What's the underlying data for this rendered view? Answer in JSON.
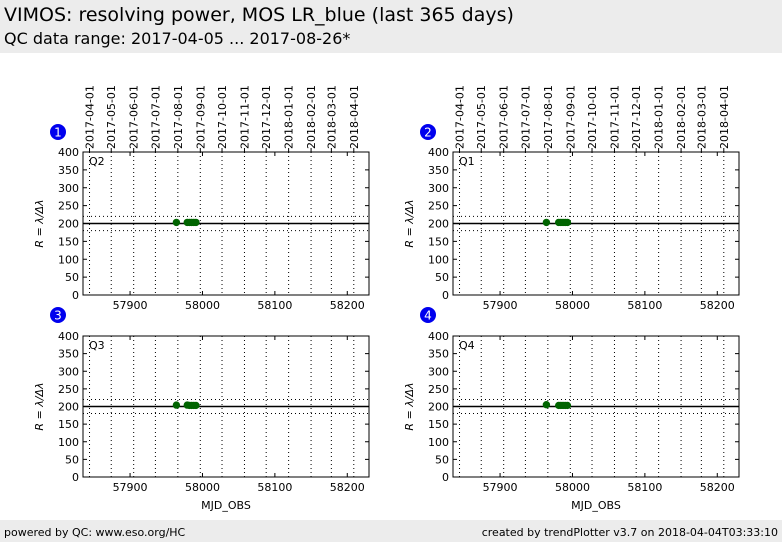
{
  "header": {
    "title": "VIMOS: resolving power, MOS LR_blue (last 365 days)",
    "subtitle": "QC data range: 2017-04-05 ... 2017-08-26*"
  },
  "footer": {
    "left": "powered by QC: www.eso.org/HC",
    "right": "created by trendPlotter v3.7 on 2018-04-04T03:33:10"
  },
  "colors": {
    "points": "#006400",
    "badge": "#0000ee",
    "badge_text": "#ffffff",
    "line": "#000000",
    "grid": "#000000"
  },
  "chart_data": [
    {
      "type": "scatter",
      "panel_number": "1",
      "label": "Q2",
      "xlabel": "",
      "ylabel": "R = λ/Δλ",
      "xlim": [
        57835,
        58230
      ],
      "ylim": [
        0,
        400
      ],
      "x_ticks": [
        57900,
        58000,
        58100,
        58200
      ],
      "y_ticks": [
        0,
        50,
        100,
        150,
        200,
        250,
        300,
        350,
        400
      ],
      "top_axis_dates": [
        "2017-04-01",
        "2017-05-01",
        "2017-06-01",
        "2017-07-01",
        "2017-08-01",
        "2017-09-01",
        "2017-10-01",
        "2017-11-01",
        "2017-12-01",
        "2018-01-01",
        "2018-02-01",
        "2018-03-01",
        "2018-04-01"
      ],
      "top_axis_mjd": [
        57844,
        57874,
        57905,
        57935,
        57966,
        57997,
        58027,
        58058,
        58088,
        58119,
        58150,
        58178,
        58209
      ],
      "reference_line": 200,
      "threshold_lines": [
        180,
        220
      ],
      "points": [
        [
          57964,
          203
        ],
        [
          57979,
          203
        ],
        [
          57982,
          203
        ],
        [
          57985,
          203
        ],
        [
          57988,
          203
        ],
        [
          57991,
          203
        ]
      ]
    },
    {
      "type": "scatter",
      "panel_number": "2",
      "label": "Q1",
      "xlabel": "",
      "ylabel": "R = λ/Δλ",
      "xlim": [
        57835,
        58230
      ],
      "ylim": [
        0,
        400
      ],
      "x_ticks": [
        57900,
        58000,
        58100,
        58200
      ],
      "y_ticks": [
        0,
        50,
        100,
        150,
        200,
        250,
        300,
        350,
        400
      ],
      "top_axis_dates": [
        "2017-04-01",
        "2017-05-01",
        "2017-06-01",
        "2017-07-01",
        "2017-08-01",
        "2017-09-01",
        "2017-10-01",
        "2017-11-01",
        "2017-12-01",
        "2018-01-01",
        "2018-02-01",
        "2018-03-01",
        "2018-04-01"
      ],
      "top_axis_mjd": [
        57844,
        57874,
        57905,
        57935,
        57966,
        57997,
        58027,
        58058,
        58088,
        58119,
        58150,
        58178,
        58209
      ],
      "reference_line": 200,
      "threshold_lines": [
        180,
        220
      ],
      "points": [
        [
          57964,
          203
        ],
        [
          57981,
          203
        ],
        [
          57984,
          203
        ],
        [
          57987,
          203
        ],
        [
          57990,
          203
        ],
        [
          57993,
          203
        ]
      ]
    },
    {
      "type": "scatter",
      "panel_number": "3",
      "label": "Q3",
      "xlabel": "MJD_OBS",
      "ylabel": "R = λ/Δλ",
      "xlim": [
        57835,
        58230
      ],
      "ylim": [
        0,
        400
      ],
      "x_ticks": [
        57900,
        58000,
        58100,
        58200
      ],
      "y_ticks": [
        0,
        50,
        100,
        150,
        200,
        250,
        300,
        350,
        400
      ],
      "top_axis_dates": [],
      "top_axis_mjd": [
        57844,
        57874,
        57905,
        57935,
        57966,
        57997,
        58027,
        58058,
        58088,
        58119,
        58150,
        58178,
        58209
      ],
      "reference_line": 200,
      "threshold_lines": [
        180,
        220
      ],
      "points": [
        [
          57964,
          204
        ],
        [
          57979,
          204
        ],
        [
          57982,
          203
        ],
        [
          57985,
          203
        ],
        [
          57988,
          203
        ],
        [
          57991,
          203
        ]
      ]
    },
    {
      "type": "scatter",
      "panel_number": "4",
      "label": "Q4",
      "xlabel": "MJD_OBS",
      "ylabel": "R = λ/Δλ",
      "xlim": [
        57835,
        58230
      ],
      "ylim": [
        0,
        400
      ],
      "x_ticks": [
        57900,
        58000,
        58100,
        58200
      ],
      "y_ticks": [
        0,
        50,
        100,
        150,
        200,
        250,
        300,
        350,
        400
      ],
      "top_axis_dates": [],
      "top_axis_mjd": [
        57844,
        57874,
        57905,
        57935,
        57966,
        57997,
        58027,
        58058,
        58088,
        58119,
        58150,
        58178,
        58209
      ],
      "reference_line": 200,
      "threshold_lines": [
        180,
        220
      ],
      "points": [
        [
          57964,
          205
        ],
        [
          57981,
          203
        ],
        [
          57984,
          203
        ],
        [
          57987,
          203
        ],
        [
          57990,
          203
        ],
        [
          57993,
          203
        ]
      ]
    }
  ]
}
